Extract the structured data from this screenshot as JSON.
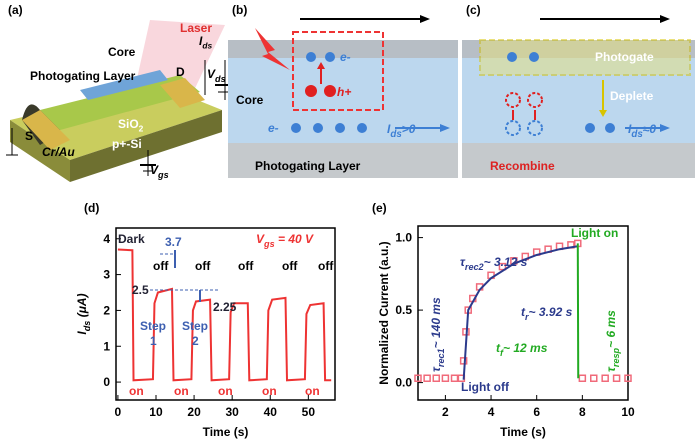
{
  "diagrams": {
    "a": {
      "labels": [
        {
          "parts": [
            "(a)"
          ]
        },
        {
          "parts": [
            "Laser"
          ]
        },
        {
          "parts": [
            "Core"
          ]
        },
        {
          "parts": [
            "Photogating Layer"
          ]
        },
        {
          "parts": [
            "D"
          ]
        },
        {
          "parts": [
            "S"
          ]
        },
        {
          "parts": [
            "SiO",
            "2"
          ]
        },
        {
          "parts": [
            "p+-Si"
          ]
        },
        {
          "parts": [
            "Cr/Au"
          ]
        },
        {
          "parts": [
            "I",
            "ds"
          ]
        },
        {
          "parts": [
            "V",
            "ds"
          ]
        },
        {
          "parts": [
            "V",
            "gs"
          ]
        }
      ]
    },
    "b": {
      "labels": [
        {
          "parts": [
            "(b)"
          ]
        },
        {
          "parts": [
            "e-"
          ]
        },
        {
          "parts": [
            "h+"
          ]
        },
        {
          "parts": [
            "Core"
          ]
        },
        {
          "parts": [
            "e-"
          ]
        },
        {
          "parts": [
            "I",
            "ds",
            ">0"
          ]
        },
        {
          "parts": [
            "Photogating Layer"
          ]
        }
      ]
    },
    "c": {
      "labels": [
        {
          "parts": [
            "(c)"
          ]
        },
        {
          "parts": [
            "Photogate"
          ]
        },
        {
          "parts": [
            "Deplete"
          ]
        },
        {
          "parts": [
            "I",
            "ds",
            "≈0"
          ]
        },
        {
          "parts": [
            "Recombine"
          ]
        }
      ]
    }
  },
  "chart_data": [
    {
      "type": "line",
      "x_label": "Time (s)",
      "y_label": {
        "parts": [
          "I",
          "ds",
          " (μA)"
        ]
      },
      "xlim": [
        -0.5,
        57
      ],
      "ylim": [
        -0.5,
        4.3
      ],
      "xticks": [
        0,
        10,
        20,
        30,
        40,
        50
      ],
      "yticks": [
        0,
        1,
        2,
        3,
        4
      ],
      "series": [
        {
          "color": "#ee3333",
          "x": [
            0,
            3.8,
            4.1,
            9.2,
            9.6,
            10.5,
            14.2,
            14.6,
            19.3,
            19.7,
            20.5,
            24.2,
            24.6,
            29.2,
            29.6,
            30.5,
            34.1,
            34.5,
            39.1,
            39.5,
            40.5,
            44.0,
            44.4,
            49.1,
            49.5,
            50.5,
            54.0,
            54.4,
            56
          ],
          "values": [
            3.7,
            3.68,
            0.05,
            0.08,
            2.2,
            2.5,
            2.6,
            0.05,
            0.08,
            2.0,
            2.25,
            2.3,
            0.05,
            0.08,
            1.95,
            2.2,
            2.2,
            0.05,
            0.08,
            2.0,
            2.3,
            2.35,
            0.05,
            0.08,
            1.9,
            2.15,
            2.2,
            0.05,
            0.05
          ]
        }
      ],
      "annotations": [
        {
          "parts": [
            "(d)"
          ]
        },
        {
          "parts": [
            "Dark"
          ]
        },
        {
          "parts": [
            "3.7"
          ]
        },
        {
          "parts": [
            "off"
          ]
        },
        {
          "parts": [
            "off"
          ]
        },
        {
          "parts": [
            "off"
          ]
        },
        {
          "parts": [
            "off"
          ]
        },
        {
          "parts": [
            "off"
          ]
        },
        {
          "parts": [
            "2.5"
          ]
        },
        {
          "parts": [
            "2.25"
          ]
        },
        {
          "parts": [
            "Step"
          ]
        },
        {
          "parts": [
            "1"
          ]
        },
        {
          "parts": [
            "Step"
          ]
        },
        {
          "parts": [
            "2"
          ]
        },
        {
          "parts": [
            "on"
          ]
        },
        {
          "parts": [
            "on"
          ]
        },
        {
          "parts": [
            "on"
          ]
        },
        {
          "parts": [
            "on"
          ]
        },
        {
          "parts": [
            "on"
          ]
        },
        {
          "parts": [
            "V",
            "gs",
            " = 40 V"
          ]
        }
      ]
    },
    {
      "type": "line",
      "x_label": "Time (s)",
      "y_label": {
        "parts": [
          "Normalized Current (a.u.)"
        ]
      },
      "xlim": [
        0.8,
        10
      ],
      "ylim": [
        -0.12,
        1.08
      ],
      "xticks": [
        2,
        4,
        6,
        8,
        10
      ],
      "yticks": [
        {
          "value": 0,
          "label": "0.0"
        },
        {
          "value": 0.5,
          "label": "0.5"
        },
        {
          "value": 1,
          "label": "1.0"
        }
      ],
      "series": [
        {
          "color": "#f06a7a",
          "marker": "square",
          "x": [
            0.8,
            1.2,
            1.6,
            2.0,
            2.4,
            2.7,
            2.8,
            2.9,
            3.0,
            3.2,
            3.5,
            4.0,
            4.5,
            5.0,
            5.5,
            6.0,
            6.5,
            7.0,
            7.5,
            7.8,
            8.0,
            8.5,
            9.0,
            9.5,
            10
          ],
          "values": [
            0.03,
            0.03,
            0.03,
            0.03,
            0.03,
            0.03,
            0.15,
            0.35,
            0.5,
            0.58,
            0.66,
            0.74,
            0.8,
            0.84,
            0.87,
            0.9,
            0.92,
            0.94,
            0.95,
            0.96,
            0.03,
            0.03,
            0.03,
            0.03,
            0.03
          ]
        },
        {
          "color": "#2b3a8c",
          "x": [
            2.8,
            3.0,
            3.5,
            4,
            5,
            6,
            7,
            7.8
          ],
          "values": [
            0.02,
            0.5,
            0.64,
            0.72,
            0.82,
            0.88,
            0.92,
            0.94
          ]
        },
        {
          "color": "#22aa22",
          "x": [
            7.8,
            7.82
          ],
          "values": [
            0.96,
            0.03
          ]
        }
      ],
      "annotations": [
        {
          "parts": [
            "(e)"
          ]
        },
        {
          "parts": [
            "Light on"
          ]
        },
        {
          "parts": [
            "τ",
            "rec2",
            "~ 3.12 s"
          ]
        },
        {
          "parts": [
            "τ",
            "rec1",
            "~ 140 ms"
          ]
        },
        {
          "parts": [
            "t",
            "r",
            "~ 3.92 s"
          ]
        },
        {
          "parts": [
            "t",
            "f",
            "~ 12 ms"
          ]
        },
        {
          "parts": [
            "τ",
            "resp",
            "~ 6 ms"
          ]
        },
        {
          "parts": [
            "Light off"
          ]
        }
      ]
    }
  ]
}
